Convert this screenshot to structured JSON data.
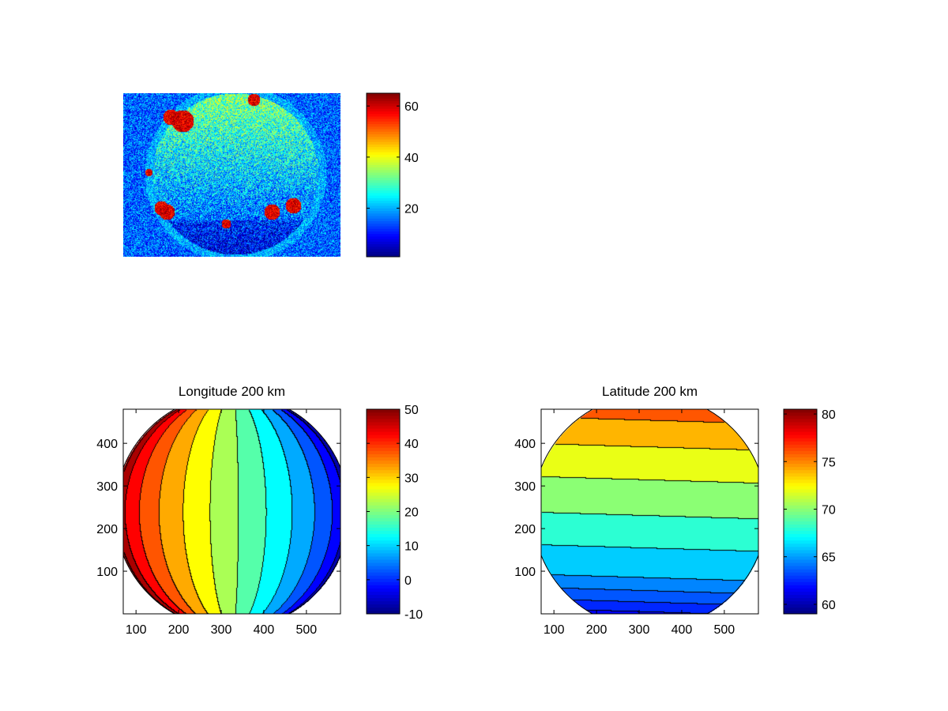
{
  "figure": {
    "background": "#ffffff",
    "colormap": "jet"
  },
  "chart_data": [
    {
      "type": "heatmap",
      "title": "",
      "description_kind": "noisy-image",
      "colorbar": {
        "range": [
          1,
          65
        ],
        "ticks": [
          20,
          40,
          60
        ]
      }
    },
    {
      "type": "heatmap",
      "title": "Longitude 200 km",
      "xlim": [
        70,
        580
      ],
      "ylim": [
        0,
        480
      ],
      "xticks": [
        100,
        200,
        300,
        400,
        500
      ],
      "yticks": [
        100,
        200,
        300,
        400
      ],
      "disk": {
        "cx": 325,
        "cy": 240,
        "r": 275
      },
      "contour_levels": [
        -10,
        -5,
        0,
        5,
        10,
        15,
        20,
        25,
        30,
        35,
        40,
        45,
        50
      ],
      "colorbar": {
        "range": [
          -10,
          50
        ],
        "ticks": [
          -10,
          0,
          10,
          20,
          30,
          40,
          50
        ]
      }
    },
    {
      "type": "heatmap",
      "title": "Latitude 200 km",
      "xlim": [
        70,
        580
      ],
      "ylim": [
        0,
        480
      ],
      "xticks": [
        100,
        200,
        300,
        400,
        500
      ],
      "yticks": [
        100,
        200,
        300,
        400
      ],
      "disk": {
        "cx": 325,
        "cy": 240,
        "r": 275
      },
      "contour_levels": [
        59,
        60,
        61,
        62,
        63,
        64,
        65,
        67,
        69,
        71,
        73,
        75,
        77,
        79,
        80
      ],
      "colorbar": {
        "range": [
          59,
          80.5
        ],
        "ticks": [
          60,
          65,
          70,
          75,
          80
        ]
      }
    }
  ]
}
